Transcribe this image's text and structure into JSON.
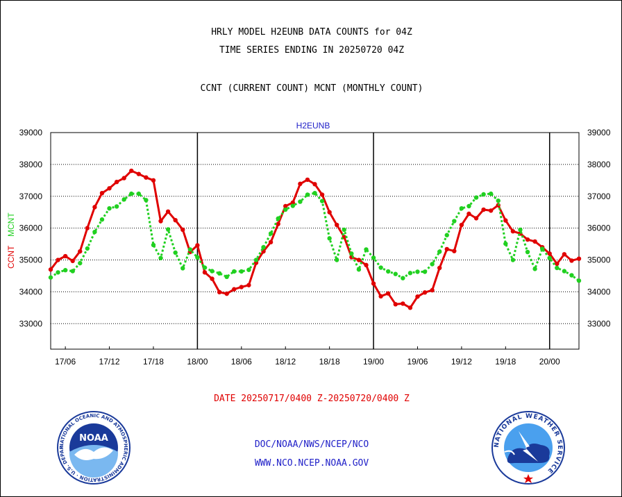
{
  "header": {
    "title_line1": "HRLY MODEL H2EUNB DATA COUNTS for 04Z",
    "title_line2": "TIME SERIES ENDING IN 20250720 04Z",
    "subtitle": "CCNT (CURRENT COUNT) MCNT (MONTHLY COUNT)"
  },
  "chart_data": {
    "type": "line",
    "title": "H2EUNB",
    "ylabel_primary": "CCNT",
    "ylabel_secondary": "MCNT",
    "ylim": [
      32200,
      39000
    ],
    "y_ticks": [
      33000,
      34000,
      35000,
      36000,
      37000,
      38000,
      39000
    ],
    "x_ticks": [
      "17/06",
      "17/12",
      "17/18",
      "18/00",
      "18/06",
      "18/12",
      "18/18",
      "19/00",
      "19/06",
      "19/12",
      "19/18",
      "20/00"
    ],
    "grid": true,
    "series": [
      {
        "name": "CCNT",
        "color": "#e00000",
        "style": "solid",
        "values": [
          34700,
          35000,
          35120,
          34970,
          35270,
          36000,
          36660,
          37100,
          37250,
          37450,
          37570,
          37800,
          37700,
          37590,
          37500,
          36220,
          36520,
          36250,
          35950,
          35250,
          35460,
          34610,
          34410,
          33990,
          33940,
          34080,
          34150,
          34210,
          34910,
          35270,
          35560,
          36130,
          36690,
          36800,
          37390,
          37520,
          37380,
          37050,
          36500,
          36100,
          35720,
          35090,
          35000,
          34840,
          34260,
          33860,
          33950,
          33610,
          33630,
          33500,
          33850,
          33980,
          34050,
          34750,
          35340,
          35280,
          36100,
          36450,
          36310,
          36580,
          36550,
          36720,
          36240,
          35900,
          35830,
          35640,
          35580,
          35400,
          35200,
          34880,
          35180,
          34980,
          35040
        ]
      },
      {
        "name": "MCNT",
        "color": "#20d020",
        "style": "dotted",
        "values": [
          34450,
          34610,
          34680,
          34650,
          34900,
          35360,
          35880,
          36270,
          36620,
          36680,
          36900,
          37080,
          37080,
          36880,
          35470,
          35060,
          35960,
          35230,
          34740,
          35330,
          35080,
          34760,
          34650,
          34580,
          34470,
          34640,
          34640,
          34690,
          35000,
          35400,
          35830,
          36300,
          36580,
          36700,
          36830,
          37050,
          37100,
          36850,
          35680,
          35000,
          35950,
          35200,
          34700,
          35330,
          35070,
          34760,
          34640,
          34560,
          34430,
          34590,
          34630,
          34630,
          34870,
          35260,
          35780,
          36220,
          36620,
          36690,
          36960,
          37060,
          37080,
          36860,
          35510,
          35000,
          35950,
          35250,
          34720,
          35350,
          35060,
          34750,
          34650,
          34520,
          34350
        ]
      }
    ]
  },
  "footer": {
    "date_range": "DATE 20250717/0400 Z-20250720/0400 Z",
    "org_line": "DOC/NOAA/NWS/NCEP/NCO",
    "url_line": "WWW.NCO.NCEP.NOAA.GOV"
  },
  "logos": {
    "noaa_text": "NOAA",
    "noaa_ring": "NATIONAL OCEANIC AND ATMOSPHERIC ADMINISTRATION · U.S. DEPARTMENT OF COMMERCE ·",
    "nws_ring": "NATIONAL WEATHER SERVICE"
  }
}
